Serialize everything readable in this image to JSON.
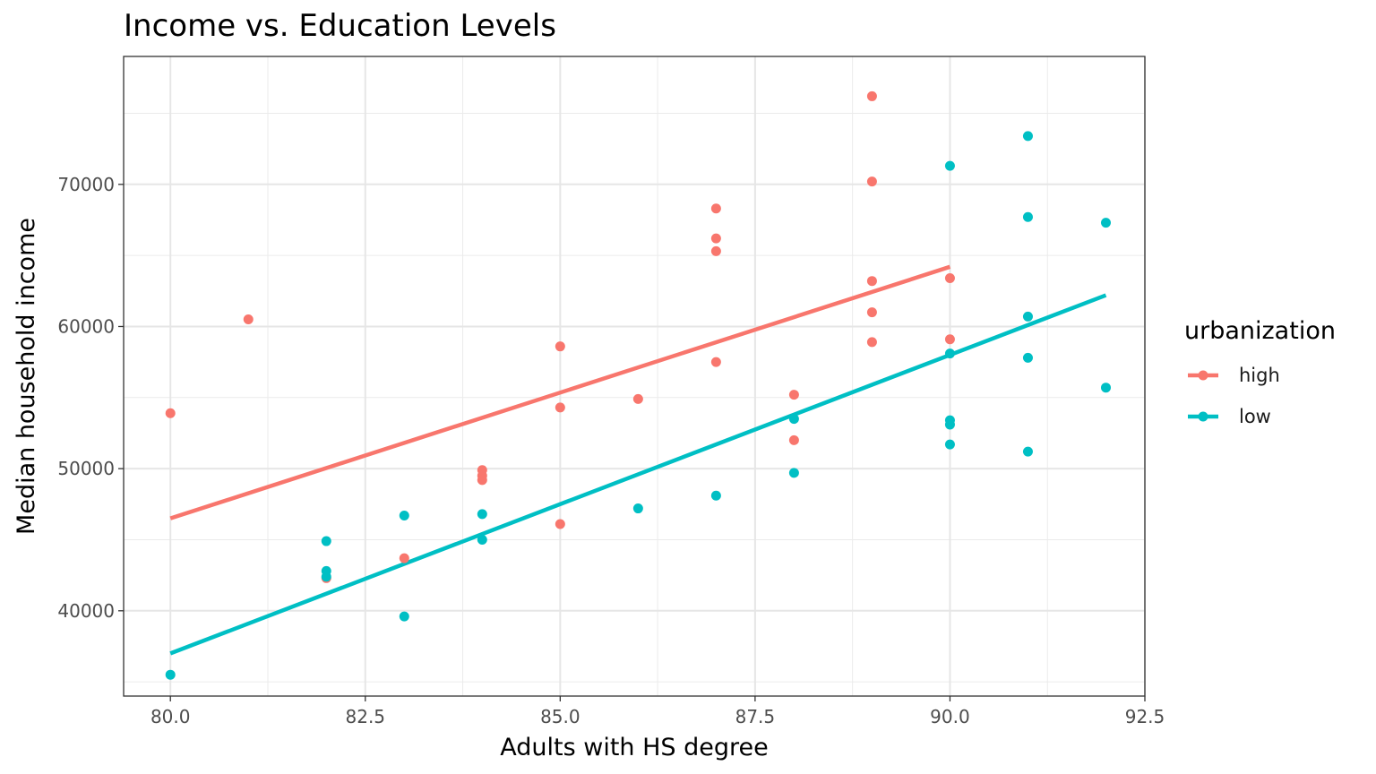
{
  "chart_data": {
    "type": "scatter",
    "title": "Income vs. Education Levels",
    "xlabel": "Adults with HS degree",
    "ylabel": "Median household income",
    "xlim": [
      79.4,
      92.5
    ],
    "ylim": [
      34000,
      79000
    ],
    "x_ticks": [
      80.0,
      82.5,
      85.0,
      87.5,
      90.0,
      92.5
    ],
    "x_tick_labels": [
      "80.0",
      "82.5",
      "85.0",
      "87.5",
      "90.0",
      "92.5"
    ],
    "x_minor_ticks": [
      81.25,
      83.75,
      86.25,
      88.75,
      91.25
    ],
    "y_ticks": [
      40000,
      50000,
      60000,
      70000
    ],
    "y_tick_labels": [
      "40000",
      "50000",
      "60000",
      "70000"
    ],
    "y_minor_ticks": [
      35000,
      45000,
      55000,
      65000,
      75000
    ],
    "grid": true,
    "legend": {
      "title": "urbanization",
      "position": "right"
    },
    "series": [
      {
        "name": "high",
        "color": "#F8766D",
        "points": [
          [
            80,
            53900
          ],
          [
            81,
            60500
          ],
          [
            82,
            42300
          ],
          [
            83,
            43700
          ],
          [
            84,
            49900
          ],
          [
            84,
            49500
          ],
          [
            84,
            49200
          ],
          [
            85,
            58600
          ],
          [
            85,
            54300
          ],
          [
            85,
            46100
          ],
          [
            86,
            54900
          ],
          [
            87,
            68300
          ],
          [
            87,
            66200
          ],
          [
            87,
            65300
          ],
          [
            87,
            57500
          ],
          [
            88,
            55200
          ],
          [
            88,
            52000
          ],
          [
            89,
            76200
          ],
          [
            89,
            70200
          ],
          [
            89,
            63200
          ],
          [
            89,
            61000
          ],
          [
            89,
            58900
          ],
          [
            90,
            63400
          ],
          [
            90,
            59100
          ]
        ],
        "fit": [
          [
            80,
            46500
          ],
          [
            90,
            64200
          ]
        ]
      },
      {
        "name": "low",
        "color": "#00BFC4",
        "points": [
          [
            80,
            35500
          ],
          [
            82,
            44900
          ],
          [
            82,
            42800
          ],
          [
            82,
            42400
          ],
          [
            83,
            46700
          ],
          [
            83,
            39600
          ],
          [
            84,
            46800
          ],
          [
            84,
            45000
          ],
          [
            86,
            47200
          ],
          [
            87,
            48100
          ],
          [
            88,
            53500
          ],
          [
            88,
            49700
          ],
          [
            90,
            71300
          ],
          [
            90,
            58100
          ],
          [
            90,
            53400
          ],
          [
            90,
            53100
          ],
          [
            90,
            51700
          ],
          [
            91,
            73400
          ],
          [
            91,
            67700
          ],
          [
            91,
            60700
          ],
          [
            91,
            57800
          ],
          [
            91,
            51200
          ],
          [
            92,
            67300
          ],
          [
            92,
            55700
          ]
        ],
        "fit": [
          [
            80,
            37000
          ],
          [
            92,
            62200
          ]
        ]
      }
    ]
  }
}
